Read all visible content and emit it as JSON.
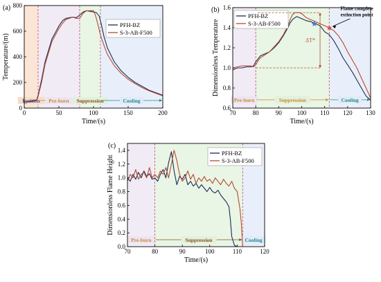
{
  "chart_data": [
    {
      "panel": "(a)",
      "type": "line",
      "xlabel": "Time/(s)",
      "ylabel": "Temperature/(m)",
      "xlim": [
        0,
        200
      ],
      "ylim": [
        0,
        800
      ],
      "xticks": [
        "0",
        "50",
        "100",
        "150",
        "200"
      ],
      "yticks": [
        "0",
        "200",
        "400",
        "600",
        "800"
      ],
      "legend": "top-right",
      "phases": [
        {
          "label": "Ignition",
          "start": 0,
          "end": 20,
          "color": "#f9dcc8",
          "text_color": "#2f5f9e"
        },
        {
          "label": "Pre-burn",
          "start": 20,
          "end": 80,
          "color": "#ece4f2",
          "text_color": "#c98a2c"
        },
        {
          "label": "Suppression",
          "start": 80,
          "end": 110,
          "color": "#e1f1dc",
          "text_color": "#8a4d1c"
        },
        {
          "label": "Cooling",
          "start": 110,
          "end": 200,
          "color": "#e1eaf8",
          "text_color": "#1f8a8a"
        }
      ],
      "series": [
        {
          "name": "PFH-BZ",
          "color": "#1d2a55",
          "x": [
            0,
            10,
            15,
            18,
            20,
            25,
            30,
            40,
            50,
            55,
            60,
            65,
            70,
            75,
            80,
            85,
            90,
            95,
            100,
            104,
            108,
            111,
            115,
            120,
            130,
            140,
            150,
            160,
            170,
            180,
            190,
            200
          ],
          "y": [
            45,
            55,
            60,
            65,
            100,
            220,
            360,
            540,
            640,
            680,
            700,
            705,
            710,
            705,
            725,
            750,
            760,
            755,
            750,
            745,
            720,
            660,
            560,
            470,
            360,
            290,
            240,
            200,
            170,
            140,
            120,
            100
          ]
        },
        {
          "name": "S-3-AB-F500",
          "color": "#b54a2e",
          "x": [
            0,
            10,
            15,
            18,
            20,
            25,
            30,
            40,
            50,
            55,
            60,
            65,
            70,
            75,
            80,
            85,
            90,
            95,
            100,
            103,
            106,
            110,
            115,
            120,
            130,
            140,
            150,
            160,
            170,
            180,
            190,
            200
          ],
          "y": [
            45,
            50,
            55,
            60,
            90,
            200,
            340,
            520,
            620,
            660,
            690,
            700,
            710,
            700,
            700,
            740,
            760,
            760,
            760,
            720,
            660,
            570,
            490,
            420,
            330,
            270,
            225,
            190,
            160,
            135,
            115,
            95
          ]
        }
      ]
    },
    {
      "panel": "(b)",
      "type": "line",
      "xlabel": "Time/(s)",
      "ylabel": "Dimensionless Temperature",
      "xlim": [
        70,
        130
      ],
      "ylim": [
        0.6,
        1.6
      ],
      "xticks": [
        "70",
        "80",
        "90",
        "100",
        "110",
        "120",
        "130"
      ],
      "yticks": [
        "0.6",
        "0.8",
        "1.0",
        "1.2",
        "1.4",
        "1.6"
      ],
      "legend": "top-left",
      "phases": [
        {
          "label": "Pre-burn",
          "start": 70,
          "end": 80,
          "color": "#ece4f2",
          "text_color": "#c98a2c"
        },
        {
          "label": "Suppression",
          "start": 80,
          "end": 112,
          "color": "#e1f1dc",
          "text_color": "#c98a2c"
        },
        {
          "label": "Cooling",
          "start": 112,
          "end": 130,
          "color": "#e1eaf8",
          "text_color": "#1f8a8a"
        }
      ],
      "annotations": [
        {
          "text": "Flame complete",
          "x": 112,
          "y": 1.4
        },
        {
          "text": "extinction point",
          "x": 112,
          "y": 1.4
        },
        {
          "text": "ΔT*",
          "x": 107,
          "y": 1.29
        }
      ],
      "series": [
        {
          "name": "PFH-BZ",
          "color": "#1d2a55",
          "x": [
            70,
            72,
            74,
            76,
            78,
            79,
            80,
            81,
            82,
            84,
            86,
            88,
            90,
            92,
            94,
            95,
            96,
            97,
            98,
            99,
            100,
            101,
            102,
            104,
            106,
            108,
            110,
            112,
            114,
            116,
            118,
            120,
            122,
            124,
            126,
            128,
            130
          ],
          "y": [
            0.98,
            1.0,
            1.0,
            1.01,
            1.01,
            1.02,
            1.06,
            1.09,
            1.12,
            1.14,
            1.16,
            1.2,
            1.25,
            1.32,
            1.4,
            1.45,
            1.48,
            1.5,
            1.51,
            1.5,
            1.49,
            1.48,
            1.47,
            1.46,
            1.44,
            1.42,
            1.36,
            1.33,
            1.27,
            1.19,
            1.1,
            1.03,
            0.96,
            0.88,
            0.8,
            0.72,
            0.68
          ]
        },
        {
          "name": "S-3-AB-F500",
          "color": "#b54a2e",
          "x": [
            70,
            72,
            74,
            76,
            78,
            79,
            80,
            81,
            82,
            84,
            86,
            88,
            90,
            92,
            94,
            95,
            96,
            97,
            98,
            99,
            100,
            101,
            102,
            104,
            106,
            108,
            110,
            112,
            114,
            116,
            118,
            120,
            122,
            124,
            126,
            128,
            130
          ],
          "y": [
            1.0,
            1.01,
            1.02,
            1.02,
            1.02,
            1.01,
            1.03,
            1.07,
            1.1,
            1.13,
            1.16,
            1.21,
            1.26,
            1.33,
            1.42,
            1.48,
            1.53,
            1.55,
            1.55,
            1.55,
            1.54,
            1.52,
            1.5,
            1.48,
            1.46,
            1.44,
            1.42,
            1.4,
            1.37,
            1.32,
            1.25,
            1.16,
            1.08,
            1.0,
            0.9,
            0.8,
            0.7
          ]
        }
      ]
    },
    {
      "panel": "(c)",
      "type": "line",
      "xlabel": "Time/(s)",
      "ylabel": "Dimensionless Flame Height",
      "xlim": [
        70,
        120
      ],
      "ylim": [
        0.0,
        1.5
      ],
      "xticks": [
        "70",
        "80",
        "90",
        "100",
        "110",
        "120"
      ],
      "yticks": [
        "0.0",
        "0.2",
        "0.4",
        "0.6",
        "0.8",
        "1.0",
        "1.2",
        "1.4"
      ],
      "legend": "top-right",
      "phases": [
        {
          "label": "Pre-burn",
          "start": 70,
          "end": 80,
          "color": "#ece4f2",
          "text_color": "#c98a2c"
        },
        {
          "label": "Suppression",
          "start": 80,
          "end": 112,
          "color": "#e1f1dc",
          "text_color": "#8a4d1c"
        },
        {
          "label": "Cooling",
          "start": 112,
          "end": 120,
          "color": "#e1eaf8",
          "text_color": "#1f8a8a"
        }
      ],
      "series": [
        {
          "name": "PFH-BZ",
          "color": "#1d2a55",
          "x": [
            70,
            71,
            72,
            73,
            74,
            75,
            76,
            77,
            78,
            79,
            80,
            81,
            82,
            83,
            84,
            85,
            86,
            87,
            88,
            89,
            90,
            91,
            92,
            93,
            94,
            95,
            96,
            97,
            98,
            99,
            100,
            101,
            102,
            103,
            104,
            105,
            106,
            107,
            107.5,
            108,
            109,
            110
          ],
          "y": [
            1.0,
            0.95,
            1.05,
            0.98,
            1.08,
            1.0,
            1.1,
            1.02,
            1.06,
            0.98,
            1.0,
            0.95,
            1.05,
            1.12,
            1.0,
            1.22,
            1.38,
            1.1,
            0.9,
            1.02,
            0.98,
            1.05,
            0.9,
            0.95,
            0.88,
            0.92,
            0.85,
            0.9,
            0.85,
            0.8,
            0.86,
            0.8,
            0.78,
            0.82,
            0.75,
            0.7,
            0.65,
            0.58,
            0.4,
            0.15,
            0.02,
            0.0
          ]
        },
        {
          "name": "S-3-AB-F500",
          "color": "#b54a2e",
          "x": [
            70,
            71,
            72,
            73,
            74,
            75,
            76,
            77,
            78,
            79,
            80,
            81,
            82,
            83,
            84,
            85,
            86,
            87,
            88,
            89,
            90,
            91,
            92,
            93,
            94,
            95,
            96,
            97,
            98,
            99,
            100,
            101,
            102,
            103,
            104,
            105,
            106,
            107,
            108,
            109,
            110,
            111,
            111.5,
            112
          ],
          "y": [
            0.95,
            1.05,
            1.0,
            1.12,
            0.98,
            1.05,
            1.08,
            1.0,
            1.15,
            1.0,
            1.05,
            1.0,
            1.1,
            1.05,
            1.15,
            1.0,
            1.2,
            1.4,
            1.25,
            1.05,
            0.95,
            1.0,
            1.1,
            0.98,
            1.05,
            0.92,
            1.0,
            0.95,
            1.02,
            0.95,
            0.98,
            0.92,
            1.0,
            0.95,
            0.9,
            0.98,
            0.92,
            0.88,
            0.95,
            0.85,
            0.8,
            0.55,
            0.35,
            0.0
          ]
        }
      ]
    }
  ]
}
